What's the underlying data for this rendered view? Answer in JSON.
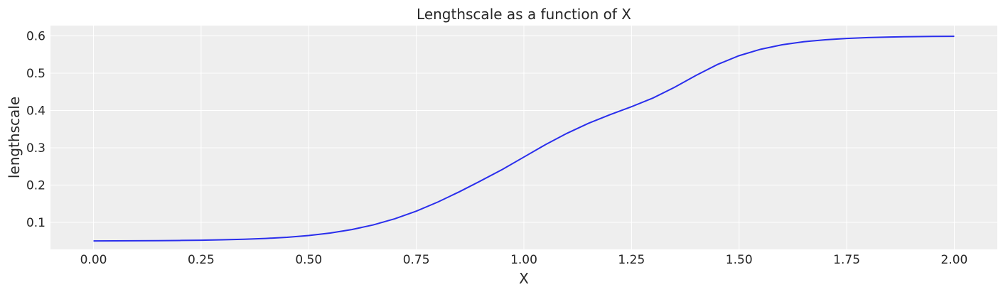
{
  "chart_data": {
    "type": "line",
    "title": "Lengthscale as a function of X",
    "xlabel": "X",
    "ylabel": "lengthscale",
    "xlim": [
      -0.1,
      2.1
    ],
    "ylim": [
      0.0275,
      0.6275
    ],
    "grid": true,
    "legend": "none",
    "colors": {
      "background": "#ffffff",
      "plot_area": "#eeeeee",
      "grid": "#ffffff",
      "line": "#2a2eec",
      "text": "#262626"
    },
    "x_ticks": [
      0.0,
      0.25,
      0.5,
      0.75,
      1.0,
      1.25,
      1.5,
      1.75,
      2.0
    ],
    "x_tick_labels": [
      "0.00",
      "0.25",
      "0.50",
      "0.75",
      "1.00",
      "1.25",
      "1.50",
      "1.75",
      "2.00"
    ],
    "y_ticks": [
      0.1,
      0.2,
      0.3,
      0.4,
      0.5,
      0.6
    ],
    "y_tick_labels": [
      "0.1",
      "0.2",
      "0.3",
      "0.4",
      "0.5",
      "0.6"
    ],
    "series": [
      {
        "x": [
          0.0,
          0.05,
          0.1,
          0.15,
          0.2,
          0.25,
          0.3,
          0.35,
          0.4,
          0.45,
          0.5,
          0.55,
          0.6,
          0.65,
          0.7,
          0.75,
          0.8,
          0.85,
          0.9,
          0.95,
          1.0,
          1.05,
          1.1,
          1.15,
          1.2,
          1.25,
          1.3,
          1.35,
          1.4,
          1.45,
          1.5,
          1.55,
          1.6,
          1.65,
          1.7,
          1.75,
          1.8,
          1.85,
          1.9,
          1.95,
          2.0
        ],
        "values": [
          0.0502,
          0.0504,
          0.0506,
          0.0509,
          0.0514,
          0.0521,
          0.0531,
          0.0546,
          0.0568,
          0.06,
          0.0647,
          0.0713,
          0.0806,
          0.0931,
          0.1095,
          0.13,
          0.1544,
          0.1819,
          0.2114,
          0.2417,
          0.275,
          0.3082,
          0.3386,
          0.3654,
          0.3885,
          0.41,
          0.4333,
          0.462,
          0.494,
          0.5233,
          0.5468,
          0.564,
          0.576,
          0.5841,
          0.5895,
          0.593,
          0.5953,
          0.5968,
          0.5978,
          0.5984,
          0.5988
        ]
      }
    ]
  }
}
